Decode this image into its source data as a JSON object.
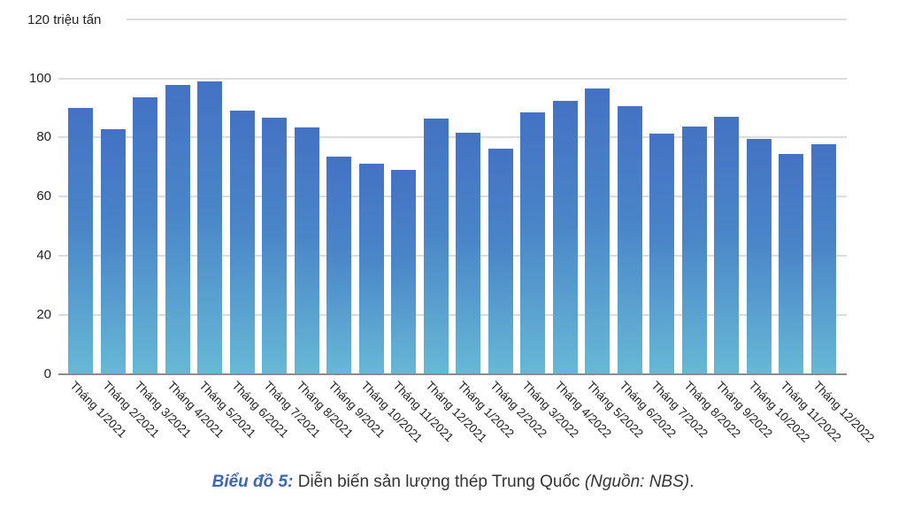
{
  "chart_data": {
    "type": "bar",
    "title": "",
    "unit_label": "120 triệu tấn",
    "xlabel": "",
    "ylabel": "triệu tấn",
    "ylim": [
      0,
      120
    ],
    "yticks": [
      0,
      20,
      40,
      60,
      80,
      100,
      120
    ],
    "grid": true,
    "legend": "none",
    "categories": [
      "Tháng 1/2021",
      "Tháng 2/2021",
      "Tháng 3/2021",
      "Tháng 4/2021",
      "Tháng 5/2021",
      "Tháng 6/2021",
      "Tháng 7/2021",
      "Tháng 8/2021",
      "Tháng 9/2021",
      "Tháng 10/2021",
      "Tháng 11/2021",
      "Tháng 12/2021",
      "Tháng 1/2022",
      "Tháng 2/2022",
      "Tháng 3/2022",
      "Tháng 4/2022",
      "Tháng 5/2022",
      "Tháng 6/2022",
      "Tháng 7/2022",
      "Tháng 8/2022",
      "Tháng 9/2022",
      "Tháng 10/2022",
      "Tháng 11/2022",
      "Tháng 12/2022"
    ],
    "values": [
      89.9,
      82.7,
      93.7,
      97.9,
      99.1,
      89.0,
      86.6,
      83.3,
      73.4,
      71.3,
      69.0,
      86.3,
      81.5,
      76.1,
      88.4,
      92.5,
      96.7,
      90.7,
      81.2,
      83.6,
      86.9,
      79.4,
      74.3,
      77.6
    ],
    "colors": {
      "bar_top": "#4472c4",
      "bar_bottom": "#67b8d6",
      "grid": "#dcdcdc",
      "axis": "#8c8c8c"
    }
  },
  "axis": {
    "y_title": "120 triệu tấn",
    "y_ticks": [
      "100",
      "80",
      "60",
      "40",
      "20",
      "0"
    ]
  },
  "caption": {
    "lead": "Biểu đồ 5:",
    "text": " Diễn biến sản lượng thép Trung Quốc ",
    "source": "(Nguồn: NBS)",
    "end": "."
  }
}
